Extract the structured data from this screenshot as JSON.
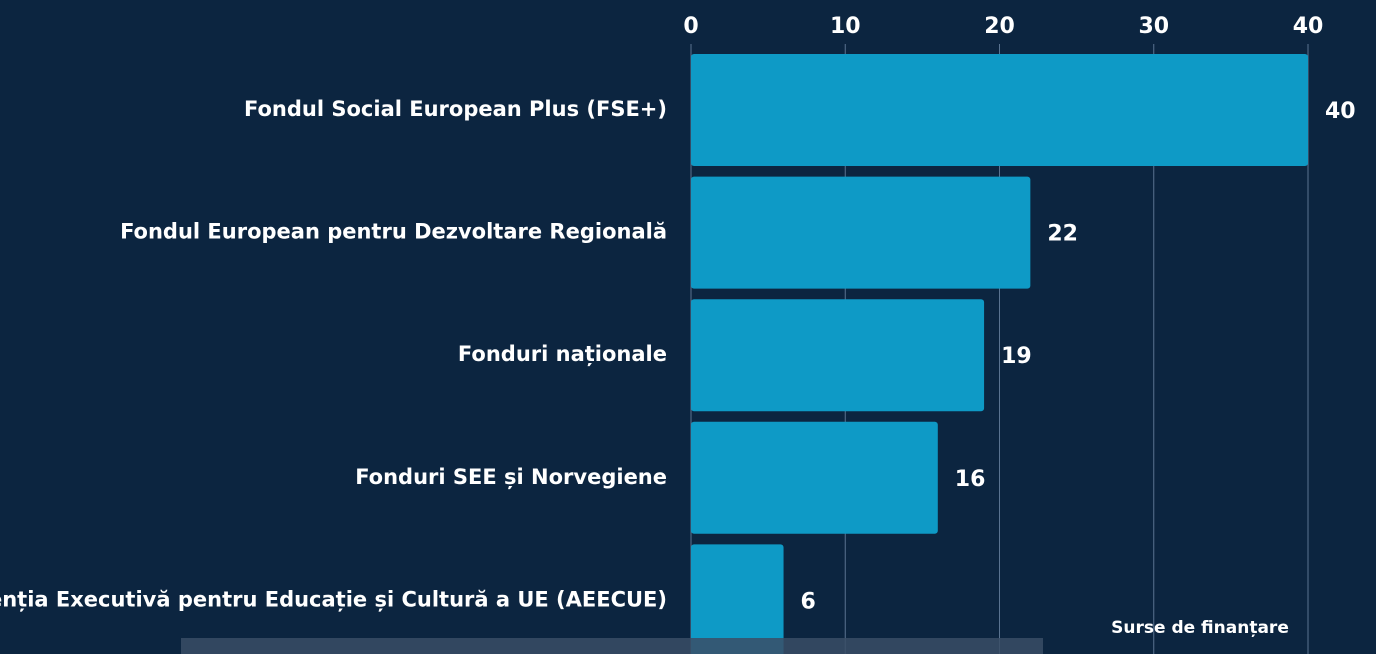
{
  "chart_data": {
    "type": "bar",
    "orientation": "horizontal",
    "categories": [
      "Fondul Social European Plus (FSE+)",
      "Fondul European pentru Dezvoltare Regională",
      "Fonduri naționale",
      "Fonduri SEE și Norvegiene",
      "Agenția Executivă pentru Educație și Cultură a UE (AEECUE)"
    ],
    "values": [
      40,
      22,
      19,
      16,
      6
    ],
    "color": "#0e9ac6",
    "xlim": [
      0,
      40
    ],
    "xticks": [
      0,
      10,
      20,
      30,
      40
    ],
    "grid": true,
    "x_axis_label": "Surse de finanțare"
  }
}
